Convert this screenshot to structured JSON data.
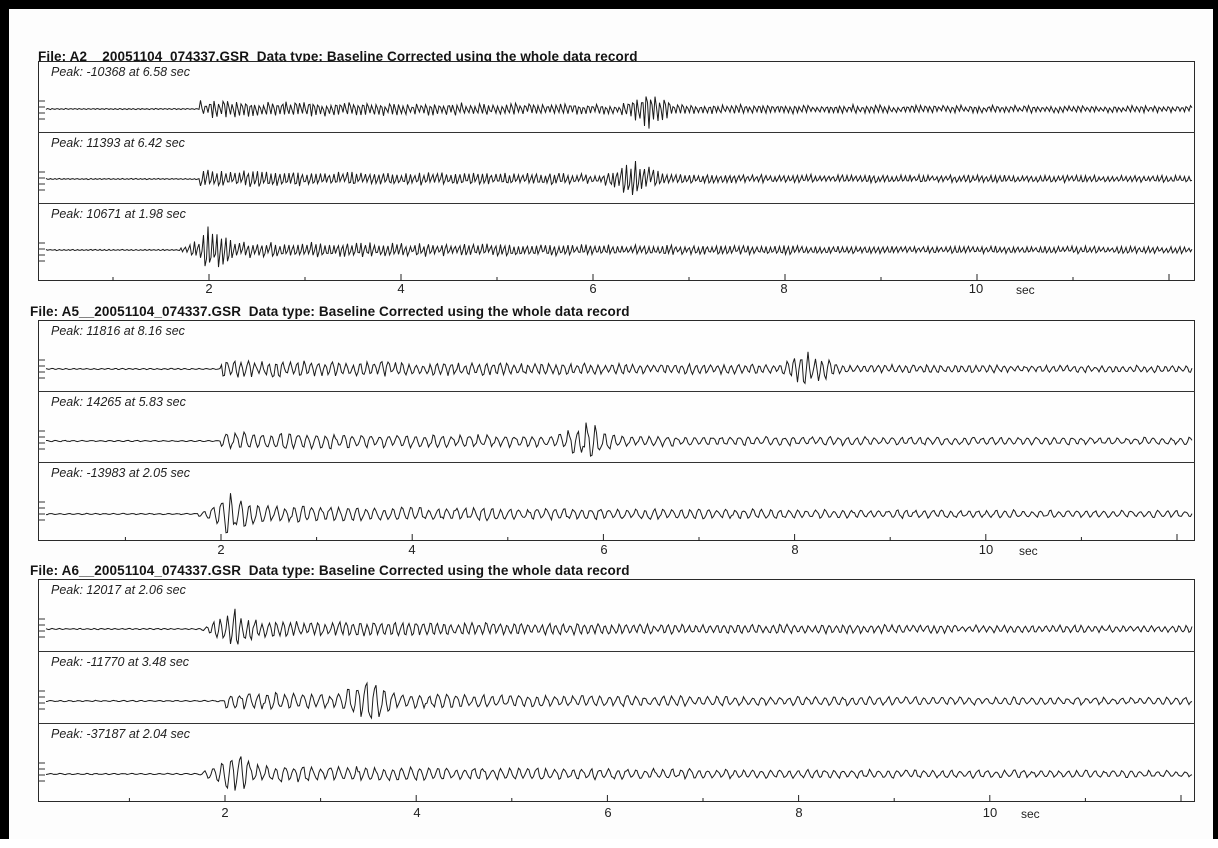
{
  "chart_data": [
    {
      "type": "line",
      "title": "File: A2__20051104_074337.GSR  Data type: Baseline Corrected using the whole data record",
      "x_unit": "sec",
      "x_ticks": [
        "2",
        "4",
        "6",
        "8",
        "10"
      ],
      "xlim": [
        0,
        12
      ],
      "series": [
        {
          "peak_label": "Peak: -10368 at 6.58 sec",
          "peak_value": -10368,
          "peak_time": 6.58
        },
        {
          "peak_label": "Peak: 11393 at 6.42 sec",
          "peak_value": 11393,
          "peak_time": 6.42
        },
        {
          "peak_label": "Peak: 10671 at 1.98 sec",
          "peak_value": 10671,
          "peak_time": 1.98
        }
      ]
    },
    {
      "type": "line",
      "title": "File: A5__20051104_074337.GSR  Data type: Baseline Corrected using the whole data record",
      "x_unit": "sec",
      "x_ticks": [
        "2",
        "4",
        "6",
        "8",
        "10"
      ],
      "xlim": [
        0,
        12
      ],
      "series": [
        {
          "peak_label": "Peak: 11816 at 8.16 sec",
          "peak_value": 11816,
          "peak_time": 8.16
        },
        {
          "peak_label": "Peak: 14265 at 5.83 sec",
          "peak_value": 14265,
          "peak_time": 5.83
        },
        {
          "peak_label": "Peak: -13983 at 2.05 sec",
          "peak_value": -13983,
          "peak_time": 2.05
        }
      ]
    },
    {
      "type": "line",
      "title": "File: A6__20051104_074337.GSR  Data type: Baseline Corrected using the whole data record",
      "x_unit": "sec",
      "x_ticks": [
        "2",
        "4",
        "6",
        "8",
        "10"
      ],
      "xlim": [
        0,
        12
      ],
      "series": [
        {
          "peak_label": "Peak: 12017 at 2.06 sec",
          "peak_value": 12017,
          "peak_time": 2.06
        },
        {
          "peak_label": "Peak: -11770 at 3.48 sec",
          "peak_value": -11770,
          "peak_time": 3.48
        },
        {
          "peak_label": "Peak: -37187 at 2.04 sec",
          "peak_value": -37187,
          "peak_time": 2.04
        }
      ]
    }
  ]
}
